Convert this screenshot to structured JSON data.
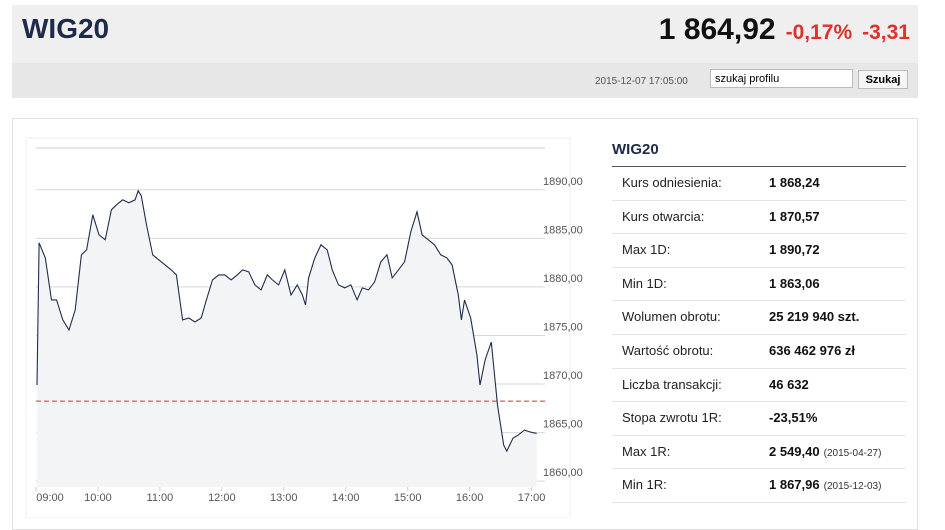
{
  "header": {
    "title": "WIG20",
    "price": "1 864,92",
    "change_pct": "-0,17%",
    "change_abs": "-3,31",
    "datetime": "2015-12-07 17:05:00",
    "search_text": "szukaj profilu",
    "search_button": "Szukaj"
  },
  "chart_data": {
    "type": "line",
    "color": "#1f2d4d",
    "area_color": "#f3f4f6",
    "grid": true,
    "x": [
      "09:01",
      "09:03",
      "09:09",
      "09:15",
      "09:20",
      "09:26",
      "09:32",
      "09:38",
      "09:44",
      "09:49",
      "09:55",
      "10:01",
      "10:07",
      "10:13",
      "10:18",
      "10:24",
      "10:30",
      "10:36",
      "10:39",
      "10:42",
      "10:47",
      "10:53",
      "10:59",
      "11:05",
      "11:11",
      "11:16",
      "11:22",
      "11:28",
      "11:34",
      "11:40",
      "11:45",
      "11:51",
      "11:57",
      "12:03",
      "12:09",
      "12:15",
      "12:20",
      "12:26",
      "12:32",
      "12:38",
      "12:44",
      "12:49",
      "12:55",
      "13:01",
      "13:07",
      "13:13",
      "13:18",
      "13:21",
      "13:24",
      "13:30",
      "13:36",
      "13:42",
      "13:47",
      "13:53",
      "13:59",
      "14:05",
      "14:11",
      "14:16",
      "14:22",
      "14:28",
      "14:34",
      "14:40",
      "14:45",
      "14:51",
      "14:57",
      "15:03",
      "15:09",
      "15:14",
      "15:20",
      "15:26",
      "15:32",
      "15:38",
      "15:43",
      "15:49",
      "15:52",
      "15:55",
      "16:01",
      "16:07",
      "16:10",
      "16:15",
      "16:21",
      "16:27",
      "16:33",
      "16:36",
      "16:42",
      "16:47",
      "16:53",
      "16:59",
      "17:05"
    ],
    "values": [
      1869.9,
      1884.54,
      1882.99,
      1878.66,
      1878.66,
      1876.6,
      1875.57,
      1877.63,
      1883.3,
      1883.81,
      1887.42,
      1885.36,
      1884.85,
      1887.94,
      1888.45,
      1888.97,
      1888.66,
      1888.97,
      1889.9,
      1889.38,
      1886.39,
      1883.3,
      1882.78,
      1882.27,
      1881.75,
      1881.24,
      1876.6,
      1876.8,
      1876.39,
      1876.8,
      1878.66,
      1880.72,
      1881.24,
      1881.24,
      1880.72,
      1881.24,
      1881.75,
      1881.55,
      1880.21,
      1879.69,
      1881.24,
      1880.72,
      1880.21,
      1881.75,
      1879.17,
      1880.21,
      1879.17,
      1878.14,
      1880.93,
      1882.99,
      1884.33,
      1883.81,
      1881.75,
      1880.21,
      1879.9,
      1880.21,
      1878.66,
      1879.9,
      1879.69,
      1880.51,
      1882.58,
      1883.3,
      1880.93,
      1881.75,
      1882.58,
      1885.67,
      1887.73,
      1885.36,
      1884.85,
      1884.33,
      1883.3,
      1882.99,
      1882.27,
      1879.17,
      1876.6,
      1878.66,
      1876.8,
      1872.99,
      1869.9,
      1872.47,
      1874.33,
      1867.83,
      1863.71,
      1863.1,
      1864.43,
      1864.74,
      1865.26,
      1865.05,
      1864.92
    ],
    "reference": 1868.24,
    "reference_color": "#e0302c",
    "xlim": [
      "09:00",
      "17:13"
    ],
    "xticks": [
      "09:00",
      "10:00",
      "11:00",
      "12:00",
      "13:00",
      "14:00",
      "15:00",
      "16:00",
      "17:00"
    ],
    "ylim": [
      1859.4,
      1894.3
    ],
    "yticks": [
      {
        "value": 1860,
        "label": "1860,00"
      },
      {
        "value": 1865,
        "label": "1865,00"
      },
      {
        "value": 1870,
        "label": "1870,00"
      },
      {
        "value": 1875,
        "label": "1875,00"
      },
      {
        "value": 1880,
        "label": "1880,00"
      },
      {
        "value": 1885,
        "label": "1885,00"
      },
      {
        "value": 1890,
        "label": "1890,00"
      }
    ]
  },
  "table": {
    "title": "WIG20",
    "rows": [
      {
        "label": "Kurs odniesienia:",
        "value": "1 868,24"
      },
      {
        "label": "Kurs otwarcia:",
        "value": "1 870,57"
      },
      {
        "label": "Max 1D:",
        "value": "1 890,72"
      },
      {
        "label": "Min 1D:",
        "value": "1 863,06"
      },
      {
        "label": "Wolumen obrotu:",
        "value": "25 219 940 szt."
      },
      {
        "label": "Wartość obrotu:",
        "value": "636 462 976 zł"
      },
      {
        "label": "Liczba transakcji:",
        "value": "46 632"
      },
      {
        "label": "Stopa zwrotu 1R:",
        "value": "-23,51%"
      },
      {
        "label": "Max 1R:",
        "value": "2 549,40",
        "date": "(2015-04-27)"
      },
      {
        "label": "Min 1R:",
        "value": "1 867,96",
        "date": "(2015-12-03)"
      }
    ]
  }
}
